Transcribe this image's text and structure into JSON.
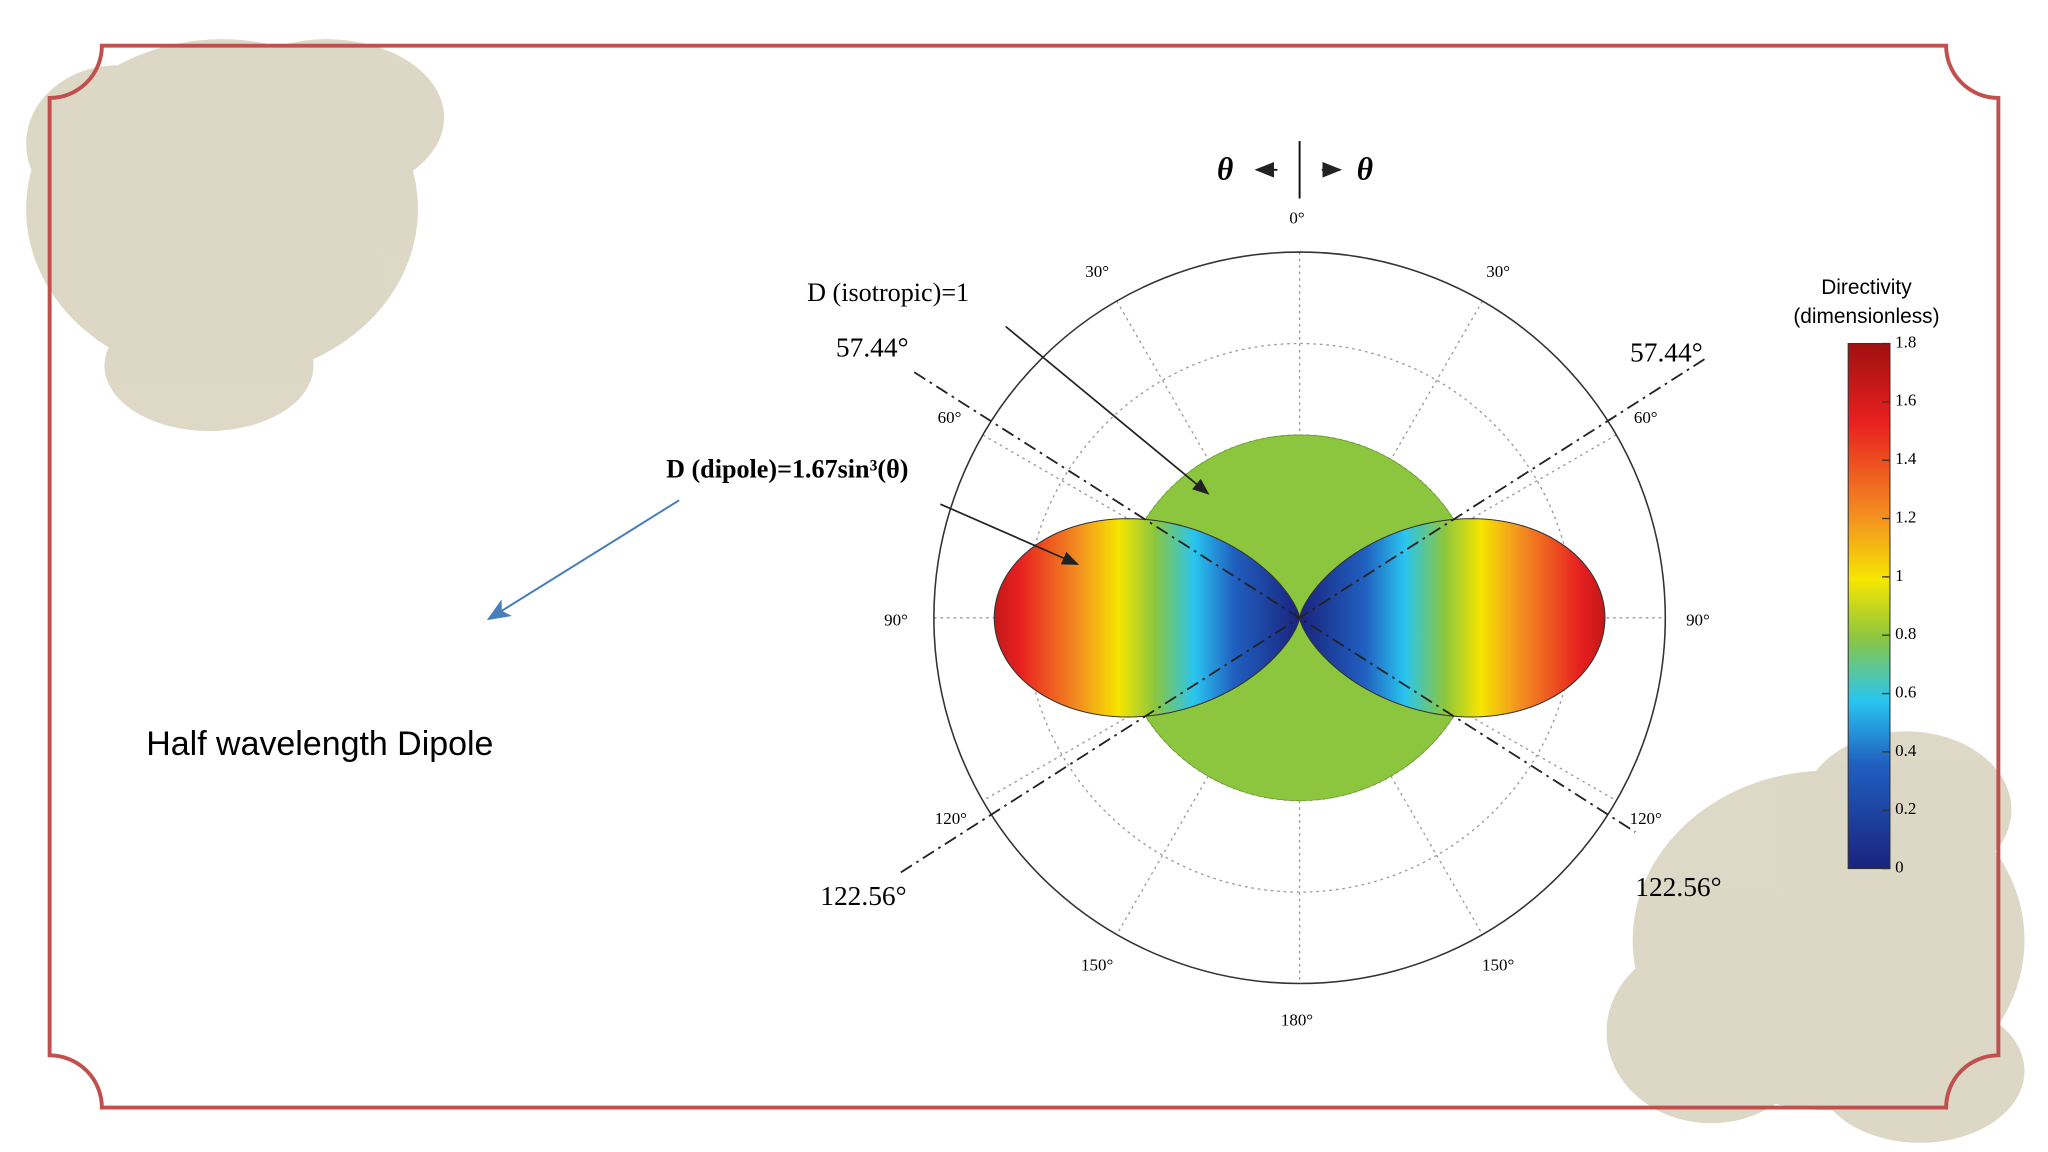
{
  "caption": "Half wavelength Dipole",
  "figure": {
    "axis_symbols": [
      "θ",
      "θ"
    ],
    "angle_labels": [
      "0°",
      "30°",
      "30°",
      "60°",
      "60°",
      "90°",
      "90°",
      "120°",
      "120°",
      "150°",
      "150°",
      "180°"
    ],
    "null_angles": [
      "57.44°",
      "57.44°",
      "122.56°",
      "122.56°"
    ],
    "annotations": [
      "D (isotropic)=1",
      "D (dipole)=1.67sin³(θ)"
    ],
    "colorbar": {
      "title": [
        "Directivity",
        "(dimensionless)"
      ],
      "ticks": [
        "0",
        "0.2",
        "0.4",
        "0.6",
        "0.8",
        "1",
        "1.2",
        "1.4",
        "1.6",
        "1.8"
      ]
    }
  }
}
